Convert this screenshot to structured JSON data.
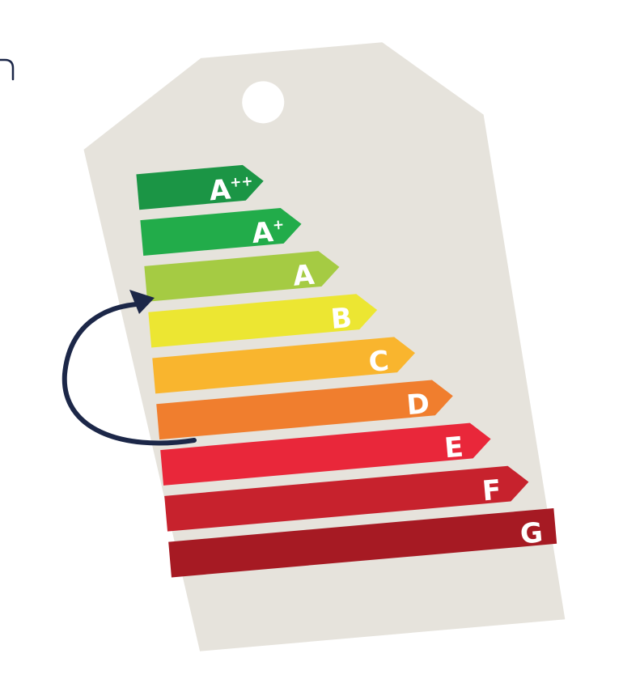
{
  "colors": {
    "background": "#ffffff",
    "tag": "#e6e3dc",
    "arrow": "#1c2748",
    "stray_mark": "#1c2748"
  },
  "energy_label": {
    "ratings": [
      {
        "base": "A",
        "sup": "++",
        "color": "#1b9545"
      },
      {
        "base": "A",
        "sup": "+",
        "color": "#22ac4a"
      },
      {
        "base": "A",
        "sup": "",
        "color": "#a5cb43"
      },
      {
        "base": "B",
        "sup": "",
        "color": "#ece632"
      },
      {
        "base": "C",
        "sup": "",
        "color": "#f9b52e"
      },
      {
        "base": "D",
        "sup": "",
        "color": "#f07e2e"
      },
      {
        "base": "E",
        "sup": "",
        "color": "#e9273a"
      },
      {
        "base": "F",
        "sup": "",
        "color": "#c7222d"
      },
      {
        "base": "G",
        "sup": "",
        "color": "#a61a23"
      }
    ],
    "arrow": {
      "from_rating": "D",
      "to_rating": "A"
    }
  }
}
